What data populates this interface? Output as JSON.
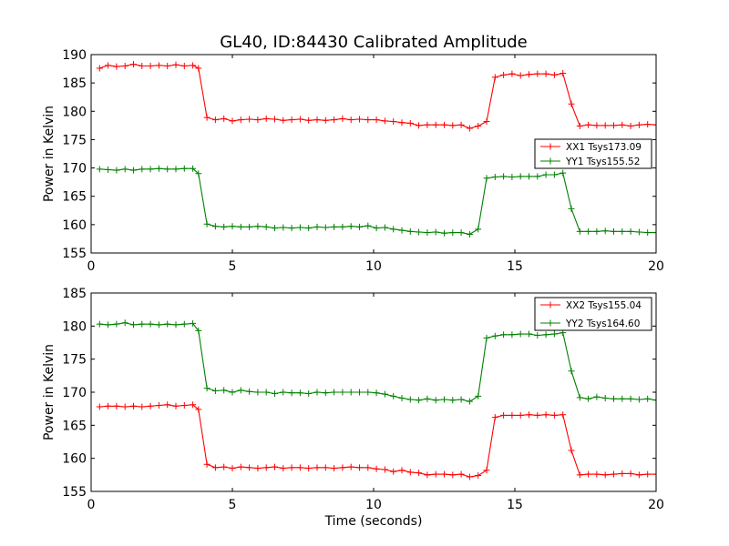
{
  "chart_data": [
    {
      "type": "line",
      "title": "GL40, ID:84430 Calibrated Amplitude",
      "xlabel": "",
      "ylabel": "Power in Kelvin",
      "xlim": [
        0,
        20
      ],
      "ylim": [
        155,
        190
      ],
      "xticks": [
        "0",
        "5",
        "10",
        "15",
        "20"
      ],
      "yticks": [
        "155",
        "160",
        "165",
        "170",
        "175",
        "180",
        "185",
        "190"
      ],
      "legend_position": "center-right",
      "x": [
        0.3,
        0.6,
        0.9,
        1.2,
        1.5,
        1.8,
        2.1,
        2.4,
        2.7,
        3.0,
        3.3,
        3.6,
        3.8,
        4.1,
        4.4,
        4.7,
        5.0,
        5.3,
        5.6,
        5.9,
        6.2,
        6.5,
        6.8,
        7.1,
        7.4,
        7.7,
        8.0,
        8.3,
        8.6,
        8.9,
        9.2,
        9.5,
        9.8,
        10.1,
        10.4,
        10.7,
        11.0,
        11.3,
        11.6,
        11.9,
        12.2,
        12.5,
        12.8,
        13.1,
        13.4,
        13.7,
        14.0,
        14.3,
        14.6,
        14.9,
        15.2,
        15.5,
        15.8,
        16.1,
        16.4,
        16.7,
        17.0,
        17.3,
        17.6,
        17.9,
        18.2,
        18.5,
        18.8,
        19.1,
        19.4,
        19.7,
        20.0
      ],
      "series": [
        {
          "name": "XX1 Tsys173.09",
          "color": "#ff0000",
          "values": [
            187.6,
            188.1,
            187.9,
            188.0,
            188.3,
            188.0,
            188.0,
            188.1,
            188.0,
            188.2,
            188.0,
            188.1,
            187.6,
            178.9,
            178.5,
            178.7,
            178.3,
            178.5,
            178.6,
            178.5,
            178.7,
            178.6,
            178.4,
            178.5,
            178.6,
            178.4,
            178.5,
            178.4,
            178.5,
            178.7,
            178.5,
            178.6,
            178.5,
            178.5,
            178.3,
            178.2,
            178.0,
            177.9,
            177.5,
            177.6,
            177.6,
            177.6,
            177.5,
            177.6,
            177.0,
            177.4,
            178.2,
            186.0,
            186.4,
            186.6,
            186.3,
            186.5,
            186.6,
            186.6,
            186.4,
            186.7,
            181.3,
            177.4,
            177.6,
            177.5,
            177.5,
            177.5,
            177.6,
            177.4,
            177.6,
            177.7,
            177.6
          ]
        },
        {
          "name": "YY1 Tsys155.52",
          "color": "#008000",
          "values": [
            169.8,
            169.7,
            169.6,
            169.8,
            169.6,
            169.8,
            169.8,
            169.9,
            169.8,
            169.8,
            169.9,
            169.9,
            169.0,
            160.1,
            159.7,
            159.6,
            159.7,
            159.6,
            159.6,
            159.7,
            159.6,
            159.4,
            159.5,
            159.4,
            159.5,
            159.4,
            159.6,
            159.5,
            159.6,
            159.6,
            159.7,
            159.6,
            159.8,
            159.4,
            159.5,
            159.2,
            159.0,
            158.8,
            158.7,
            158.6,
            158.7,
            158.5,
            158.6,
            158.6,
            158.3,
            159.2,
            168.2,
            168.4,
            168.5,
            168.4,
            168.5,
            168.5,
            168.5,
            168.8,
            168.8,
            169.1,
            162.8,
            158.8,
            158.8,
            158.8,
            158.9,
            158.8,
            158.8,
            158.8,
            158.7,
            158.6,
            158.6
          ]
        }
      ]
    },
    {
      "type": "line",
      "title": "",
      "xlabel": "Time (seconds)",
      "ylabel": "Power in Kelvin",
      "xlim": [
        0,
        20
      ],
      "ylim": [
        155,
        185
      ],
      "xticks": [
        "0",
        "5",
        "10",
        "15",
        "20"
      ],
      "yticks": [
        "155",
        "160",
        "165",
        "170",
        "175",
        "180",
        "185"
      ],
      "legend_position": "top-right",
      "x": [
        0.3,
        0.6,
        0.9,
        1.2,
        1.5,
        1.8,
        2.1,
        2.4,
        2.7,
        3.0,
        3.3,
        3.6,
        3.8,
        4.1,
        4.4,
        4.7,
        5.0,
        5.3,
        5.6,
        5.9,
        6.2,
        6.5,
        6.8,
        7.1,
        7.4,
        7.7,
        8.0,
        8.3,
        8.6,
        8.9,
        9.2,
        9.5,
        9.8,
        10.1,
        10.4,
        10.7,
        11.0,
        11.3,
        11.6,
        11.9,
        12.2,
        12.5,
        12.8,
        13.1,
        13.4,
        13.7,
        14.0,
        14.3,
        14.6,
        14.9,
        15.2,
        15.5,
        15.8,
        16.1,
        16.4,
        16.7,
        17.0,
        17.3,
        17.6,
        17.9,
        18.2,
        18.5,
        18.8,
        19.1,
        19.4,
        19.7,
        20.0
      ],
      "series": [
        {
          "name": "XX2 Tsys155.04",
          "color": "#ff0000",
          "values": [
            167.8,
            167.9,
            167.9,
            167.8,
            167.9,
            167.8,
            167.9,
            168.0,
            168.1,
            167.9,
            168.0,
            168.1,
            167.4,
            159.1,
            158.6,
            158.7,
            158.5,
            158.7,
            158.6,
            158.5,
            158.6,
            158.7,
            158.5,
            158.6,
            158.6,
            158.5,
            158.6,
            158.6,
            158.5,
            158.6,
            158.7,
            158.6,
            158.6,
            158.4,
            158.3,
            158.0,
            158.2,
            157.9,
            157.8,
            157.5,
            157.6,
            157.6,
            157.5,
            157.6,
            157.2,
            157.4,
            158.2,
            166.2,
            166.5,
            166.5,
            166.5,
            166.6,
            166.5,
            166.6,
            166.5,
            166.6,
            161.2,
            157.5,
            157.6,
            157.6,
            157.5,
            157.6,
            157.7,
            157.7,
            157.5,
            157.6,
            157.6
          ]
        },
        {
          "name": "YY2 Tsys164.60",
          "color": "#008000",
          "values": [
            180.3,
            180.2,
            180.3,
            180.5,
            180.2,
            180.3,
            180.3,
            180.2,
            180.3,
            180.2,
            180.3,
            180.4,
            179.3,
            170.6,
            170.2,
            170.3,
            170.0,
            170.3,
            170.1,
            170.0,
            170.0,
            169.8,
            170.0,
            169.9,
            169.9,
            169.8,
            170.0,
            169.9,
            170.0,
            170.0,
            170.0,
            170.0,
            170.0,
            169.9,
            169.7,
            169.4,
            169.1,
            168.9,
            168.8,
            169.0,
            168.8,
            168.9,
            168.8,
            168.9,
            168.6,
            169.4,
            178.2,
            178.5,
            178.7,
            178.7,
            178.8,
            178.8,
            178.6,
            178.7,
            178.8,
            179.0,
            173.2,
            169.2,
            169.0,
            169.3,
            169.1,
            169.0,
            169.0,
            169.0,
            168.9,
            169.0,
            168.8
          ]
        }
      ]
    }
  ]
}
